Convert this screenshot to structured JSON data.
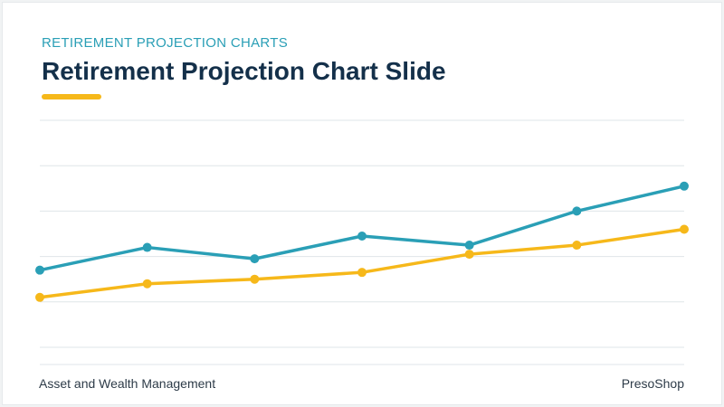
{
  "header": {
    "eyebrow": "RETIREMENT PROJECTION CHARTS",
    "title": "Retirement Projection Chart Slide"
  },
  "footer": {
    "left": "Asset and Wealth Management",
    "right": "PresoShop"
  },
  "colors": {
    "teal": "#2a9fb6",
    "gold": "#f6b81a",
    "grid": "#dfe5e8",
    "title": "#14304a"
  },
  "chart_data": {
    "type": "line",
    "x": [
      1,
      2,
      3,
      4,
      5,
      6,
      7
    ],
    "ylim": [
      0,
      5
    ],
    "grid": true,
    "axis_labels_visible": false,
    "series": [
      {
        "color": "#2a9fb6",
        "values": [
          1.7,
          2.2,
          1.95,
          2.45,
          2.25,
          3.0,
          3.55
        ]
      },
      {
        "color": "#f6b81a",
        "values": [
          1.1,
          1.4,
          1.5,
          1.65,
          2.05,
          2.25,
          2.6
        ]
      }
    ]
  }
}
